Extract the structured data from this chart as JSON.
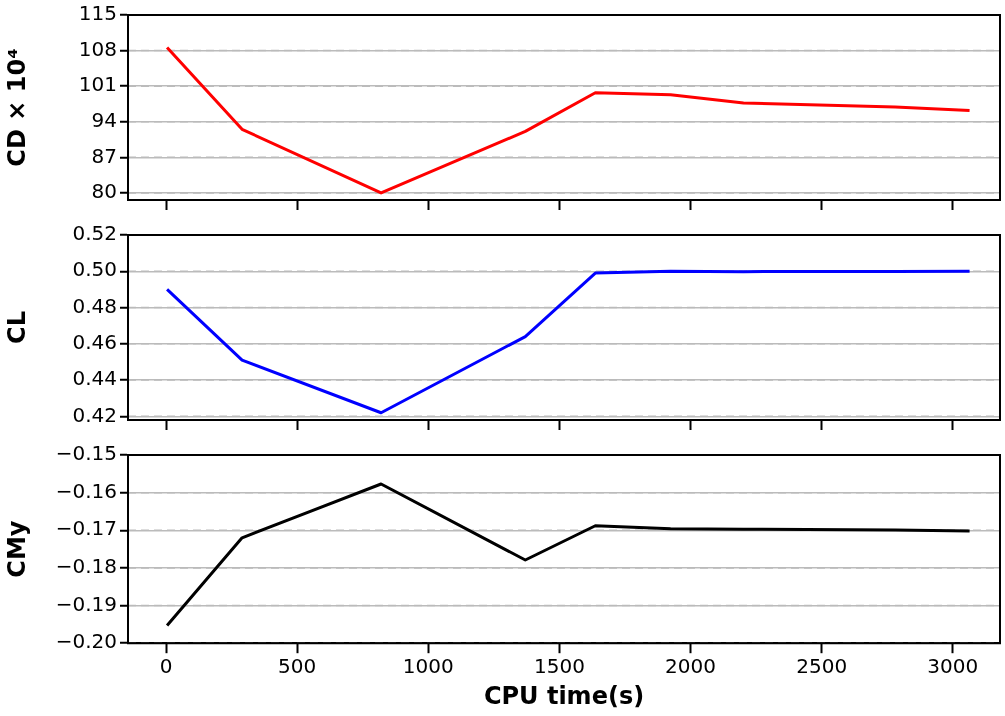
{
  "chart_data": [
    {
      "type": "line",
      "ylabel": "CD × 10⁴",
      "x": [
        4,
        290,
        820,
        1370,
        1637,
        1924,
        2202,
        2780,
        3064
      ],
      "series": [
        {
          "color": "#ff0000",
          "values": [
            108.6,
            92.5,
            80.0,
            92.1,
            99.7,
            99.3,
            97.7,
            96.9,
            96.2
          ]
        }
      ],
      "xlim": [
        -145,
        3180
      ],
      "xticks": [
        0,
        500,
        1000,
        1500,
        2000,
        2500,
        3000
      ],
      "ylim": [
        78.6,
        115
      ],
      "yticks": [
        80,
        87,
        94,
        101,
        108,
        115
      ],
      "grid": "y",
      "tick_labels": "y",
      "marker": "none",
      "legend": false
    },
    {
      "type": "line",
      "ylabel": "CL",
      "x": [
        4,
        290,
        820,
        1370,
        1637,
        1924,
        2202,
        2780,
        3064
      ],
      "series": [
        {
          "color": "#0000ff",
          "values": [
            0.49,
            0.451,
            0.422,
            0.464,
            0.499,
            0.5,
            0.4998,
            0.4999,
            0.5
          ]
        }
      ],
      "xlim": [
        -145,
        3180
      ],
      "xticks": [
        0,
        500,
        1000,
        1500,
        2000,
        2500,
        3000
      ],
      "ylim": [
        0.418,
        0.52
      ],
      "yticks": [
        0.42,
        0.44,
        0.46,
        0.48,
        {
          "value": 0.5,
          "label": "0.50"
        },
        0.52
      ],
      "grid": "y",
      "tick_labels": "y",
      "marker": "none",
      "legend": false
    },
    {
      "type": "line",
      "ylabel": "CMy",
      "xlabel": "CPU time(s)",
      "x": [
        4,
        290,
        820,
        1370,
        1637,
        1924,
        2202,
        2780,
        3064
      ],
      "series": [
        {
          "color": "#000000",
          "values": [
            -0.1953,
            -0.172,
            -0.1577,
            -0.1779,
            -0.1688,
            -0.1696,
            -0.1697,
            -0.1699,
            -0.1702
          ]
        }
      ],
      "xlim": [
        -145,
        3180
      ],
      "xticks": [
        0,
        500,
        1000,
        1500,
        2000,
        2500,
        3000
      ],
      "ylim": [
        -0.2,
        -0.15
      ],
      "yticks": [
        {
          "value": -0.2,
          "label": "−0.20"
        },
        -0.19,
        -0.18,
        -0.17,
        -0.16,
        -0.15
      ],
      "grid": "y",
      "marker": "none",
      "legend": false
    }
  ]
}
